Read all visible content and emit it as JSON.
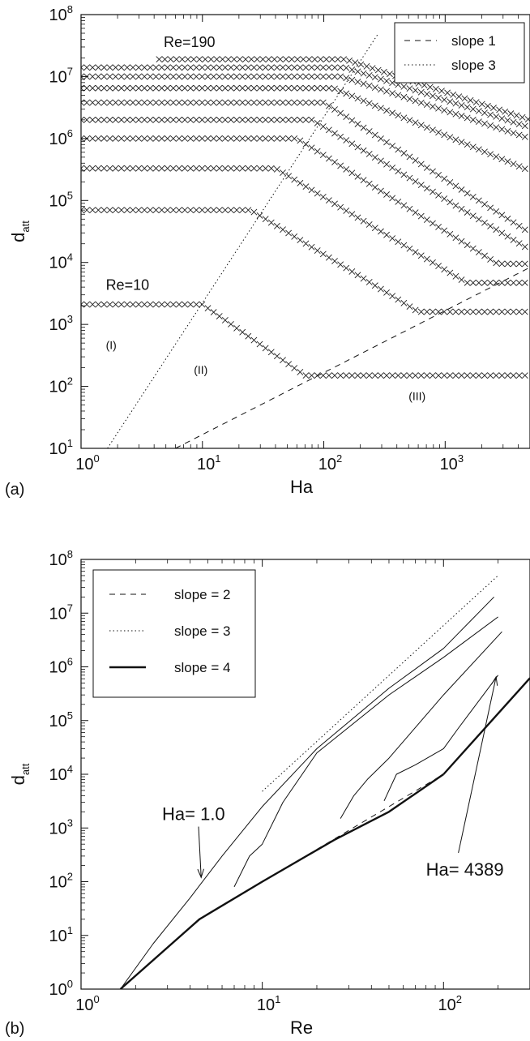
{
  "chart_data": [
    {
      "type": "scatter",
      "panel_label": "(a)",
      "xlabel": "Ha",
      "ylabel": "d",
      "ylabel_sub": "att",
      "xscale": "log",
      "yscale": "log",
      "xlim": [
        1,
        5000
      ],
      "ylim": [
        10,
        100000000
      ],
      "x_ticks": [
        {
          "base": "10",
          "exp": "0"
        },
        {
          "base": "10",
          "exp": "1"
        },
        {
          "base": "10",
          "exp": "2"
        },
        {
          "base": "10",
          "exp": "3"
        }
      ],
      "y_ticks": [
        {
          "base": "10",
          "exp": "1"
        },
        {
          "base": "10",
          "exp": "2"
        },
        {
          "base": "10",
          "exp": "3"
        },
        {
          "base": "10",
          "exp": "4"
        },
        {
          "base": "10",
          "exp": "5"
        },
        {
          "base": "10",
          "exp": "6"
        },
        {
          "base": "10",
          "exp": "7"
        },
        {
          "base": "10",
          "exp": "8"
        }
      ],
      "legend_position": "top-right",
      "legend": [
        {
          "label": "slope 1",
          "style": "dashed"
        },
        {
          "label": "slope 3",
          "style": "dotted"
        }
      ],
      "series": [
        {
          "marker": "x",
          "plateau": 2100,
          "ha_start": 1,
          "ha_break": 10,
          "ha_end": 70,
          "floor": 150
        },
        {
          "marker": "x",
          "plateau": 70000,
          "ha_start": 1,
          "ha_break": 25,
          "ha_end": 600,
          "floor": 1600
        },
        {
          "marker": "x",
          "plateau": 330000,
          "ha_start": 1,
          "ha_break": 40,
          "ha_end": 1500,
          "floor": 4700
        },
        {
          "marker": "x",
          "plateau": 1000000,
          "ha_start": 1,
          "ha_break": 60,
          "ha_end": 2700,
          "floor": 9500
        },
        {
          "marker": "x",
          "plateau": 2000000,
          "ha_start": 1,
          "ha_break": 80,
          "ha_end": 5000,
          "floor": 16000
        },
        {
          "marker": "x",
          "plateau": 3800000,
          "ha_start": 1,
          "ha_break": 100,
          "ha_end": 5000,
          "floor": 30000
        },
        {
          "marker": "x",
          "plateau": 6500000,
          "ha_start": 1,
          "ha_break": 120,
          "ha_end": 5000,
          "floor": 300000
        },
        {
          "marker": "x",
          "plateau": 10000000,
          "ha_start": 1,
          "ha_break": 140,
          "ha_end": 5000,
          "floor": 1000000
        },
        {
          "marker": "x",
          "plateau": 14000000,
          "ha_start": 1,
          "ha_break": 150,
          "ha_end": 5000,
          "floor": 1500000
        },
        {
          "marker": "x",
          "plateau": 19000000,
          "ha_start": 4.4,
          "ha_break": 150,
          "ha_end": 5000,
          "floor": 2000000
        }
      ],
      "reference_lines": [
        {
          "style": "dashed",
          "points": [
            [
              6,
              10
            ],
            [
              5000,
              8333
            ]
          ]
        },
        {
          "style": "dotted",
          "points": [
            [
              1.65,
              10
            ],
            [
              280,
              48800000
            ]
          ]
        }
      ],
      "annotations": [
        {
          "text": "Re=190",
          "x": 4.8,
          "y": 30000000
        },
        {
          "text": "Re=10",
          "x": 1.6,
          "y": 3600
        },
        {
          "text": "(I)",
          "x": 1.6,
          "y": 400
        },
        {
          "text": "(II)",
          "x": 8.5,
          "y": 160
        },
        {
          "text": "(III)",
          "x": 500,
          "y": 60
        }
      ]
    },
    {
      "type": "line",
      "panel_label": "(b)",
      "xlabel": "Re",
      "ylabel": "d",
      "ylabel_sub": "att",
      "xscale": "log",
      "yscale": "log",
      "xlim": [
        1,
        300
      ],
      "ylim": [
        1,
        100000000
      ],
      "x_ticks": [
        {
          "base": "10",
          "exp": "0"
        },
        {
          "base": "10",
          "exp": "1"
        },
        {
          "base": "10",
          "exp": "2"
        }
      ],
      "y_ticks": [
        {
          "base": "10",
          "exp": "0"
        },
        {
          "base": "10",
          "exp": "1"
        },
        {
          "base": "10",
          "exp": "2"
        },
        {
          "base": "10",
          "exp": "3"
        },
        {
          "base": "10",
          "exp": "4"
        },
        {
          "base": "10",
          "exp": "5"
        },
        {
          "base": "10",
          "exp": "6"
        },
        {
          "base": "10",
          "exp": "7"
        },
        {
          "base": "10",
          "exp": "8"
        }
      ],
      "legend_position": "top-left",
      "legend": [
        {
          "label": "slope = 2",
          "style": "dashed"
        },
        {
          "label": "slope = 3",
          "style": "dotted"
        },
        {
          "label": "slope = 4",
          "style": "thick"
        }
      ],
      "series": [
        {
          "style": "thick",
          "points": [
            [
              1.65,
              1
            ],
            [
              4.5,
              20
            ],
            [
              10,
              100
            ],
            [
              25,
              600
            ],
            [
              50,
              2000
            ],
            [
              100,
              10000
            ]
          ]
        },
        {
          "style": "thick",
          "points": [
            [
              100,
              10000
            ],
            [
              300,
              620000
            ]
          ]
        },
        {
          "style": "thin",
          "points": [
            [
              1.65,
              1
            ],
            [
              2.5,
              7
            ],
            [
              4,
              50
            ],
            [
              6,
              300
            ],
            [
              10,
              2500
            ],
            [
              20,
              30000
            ],
            [
              50,
              400000
            ],
            [
              100,
              2200000
            ],
            [
              190,
              20000000
            ]
          ]
        },
        {
          "style": "thin",
          "points": [
            [
              7,
              80
            ],
            [
              8.5,
              300
            ],
            [
              10,
              500
            ],
            [
              13,
              3000
            ],
            [
              20,
              25000
            ],
            [
              50,
              300000
            ],
            [
              100,
              1500000
            ],
            [
              200,
              8500000
            ]
          ]
        },
        {
          "style": "thin",
          "points": [
            [
              27,
              1500
            ],
            [
              32,
              4000
            ],
            [
              38,
              8000
            ],
            [
              50,
              20000
            ],
            [
              100,
              300000
            ],
            [
              210,
              4500000
            ]
          ]
        },
        {
          "style": "thin",
          "points": [
            [
              47,
              3200
            ],
            [
              55,
              10000
            ],
            [
              70,
              15000
            ],
            [
              100,
              30000
            ],
            [
              120,
              70000
            ],
            [
              200,
              700000
            ]
          ]
        }
      ],
      "reference_lines": [
        {
          "style": "dashed",
          "points": [
            [
              10,
              100
            ],
            [
              100,
              10000
            ]
          ]
        },
        {
          "style": "dotted",
          "points": [
            [
              10,
              4800
            ],
            [
              200,
              50000000
            ]
          ]
        }
      ],
      "annotations": [
        {
          "text": "Ha= 1.0",
          "x": 2.8,
          "y": 1400,
          "arrow_to": [
            4.6,
            120
          ]
        },
        {
          "text": "Ha= 4389",
          "x": 80,
          "y": 130,
          "arrow_to": [
            195,
            650000
          ]
        }
      ]
    }
  ]
}
